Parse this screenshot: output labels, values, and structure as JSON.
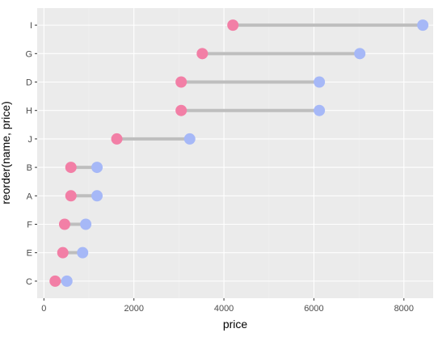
{
  "chart_data": {
    "type": "dumbbell",
    "xlabel": "price",
    "ylabel": "reorder(name, price)",
    "categories": [
      "C",
      "E",
      "F",
      "A",
      "B",
      "J",
      "H",
      "D",
      "G",
      "I"
    ],
    "series": [
      {
        "name": "",
        "values": [
          250,
          420,
          460,
          600,
          600,
          1620,
          3050,
          3050,
          3520,
          4200
        ]
      },
      {
        "name": "",
        "values": [
          510,
          860,
          930,
          1180,
          1180,
          3240,
          6120,
          6120,
          7020,
          8420
        ]
      }
    ],
    "xlim": [
      -150,
      8650
    ],
    "xticks": [
      0,
      2000,
      4000,
      6000,
      8000
    ],
    "grid": true,
    "colors": {
      "panel": "#ebebeb",
      "grid_major": "#ffffff",
      "grid_minor": "#f2f2f2",
      "segment": "#bebebe",
      "low_point": "#f27fa6",
      "high_point": "#a6b8f7"
    }
  }
}
